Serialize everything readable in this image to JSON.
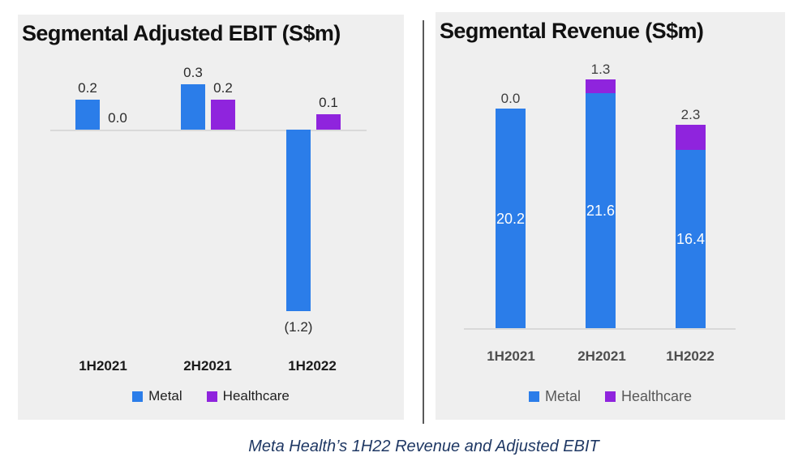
{
  "page": {
    "caption": "Meta Health’s 1H22 Revenue and Adjusted EBIT"
  },
  "colors": {
    "metal": "#2b7de9",
    "healthcare": "#8f24dd",
    "panel_bg": "#efefef",
    "divider": "#595959",
    "axis_line": "#d9d9d9",
    "caption_text": "#1f3864"
  },
  "chart_data": [
    {
      "id": "ebit",
      "type": "bar",
      "title": "Segmental Adjusted EBIT (S$m)",
      "categories": [
        "1H2021",
        "2H2021",
        "1H2022"
      ],
      "series": [
        {
          "name": "Metal",
          "values": [
            0.2,
            0.3,
            -1.2
          ],
          "labels": [
            "0.2",
            "0.3",
            "(1.2)"
          ]
        },
        {
          "name": "Healthcare",
          "values": [
            0.0,
            0.2,
            0.1
          ],
          "labels": [
            "0.0",
            "0.2",
            "0.1"
          ]
        }
      ],
      "legend": [
        "Metal",
        "Healthcare"
      ],
      "legend_position": "bottom",
      "grid": false,
      "xlabel": "",
      "ylabel": "",
      "ylim": [
        -1.4,
        0.4
      ]
    },
    {
      "id": "revenue",
      "type": "stacked-bar",
      "title": "Segmental Revenue (S$m)",
      "categories": [
        "1H2021",
        "2H2021",
        "1H2022"
      ],
      "series": [
        {
          "name": "Metal",
          "values": [
            20.2,
            21.6,
            16.4
          ],
          "labels": [
            "20.2",
            "21.6",
            "16.4"
          ]
        },
        {
          "name": "Healthcare",
          "values": [
            0.0,
            1.3,
            2.3
          ],
          "labels": [
            "0.0",
            "1.3",
            "2.3"
          ]
        }
      ],
      "legend": [
        "Metal",
        "Healthcare"
      ],
      "legend_position": "bottom",
      "grid": false,
      "xlabel": "",
      "ylabel": "",
      "ylim": [
        0,
        24
      ]
    }
  ]
}
